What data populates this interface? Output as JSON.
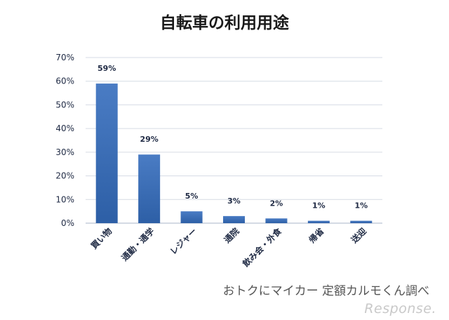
{
  "chart_data": {
    "type": "bar",
    "title": "自転車の利用用途",
    "categories": [
      "買い物",
      "通勤・通学",
      "レジャー",
      "通院",
      "飲み会・外食",
      "帰省",
      "送迎"
    ],
    "values": [
      59,
      29,
      5,
      3,
      2,
      1,
      1
    ],
    "data_labels": [
      "59%",
      "29%",
      "5%",
      "3%",
      "2%",
      "1%",
      "1%"
    ],
    "ylim": [
      0,
      70
    ],
    "yticks": [
      0,
      10,
      20,
      30,
      40,
      50,
      60,
      70
    ],
    "ytick_labels": [
      "0%",
      "10%",
      "20%",
      "30%",
      "40%",
      "50%",
      "60%",
      "70%"
    ],
    "grid": true,
    "legend": "none",
    "bar_color": "#2d5fa6",
    "bar_color_light": "#4a7cc4"
  },
  "footer": {
    "source": "おトクにマイカー 定額カルモくん調べ",
    "brand": "Response."
  }
}
